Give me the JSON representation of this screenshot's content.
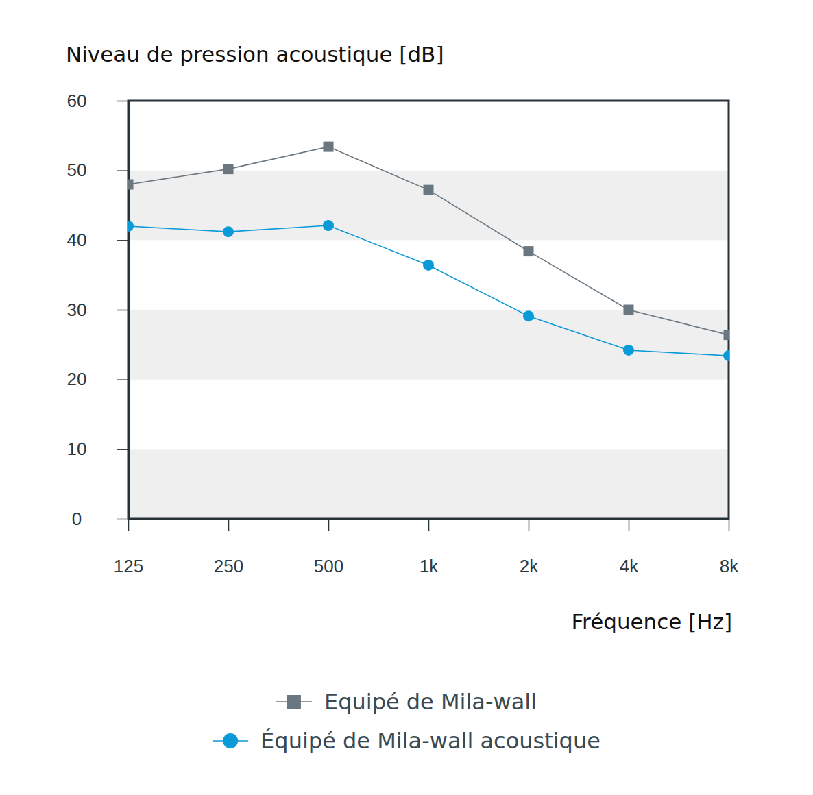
{
  "chart_data": {
    "type": "line",
    "y_label": "Niveau de pression acoustique [dB]",
    "x_label": "Fréquence [Hz]",
    "categories": [
      "125",
      "250",
      "500",
      "1k",
      "2k",
      "4k",
      "8k"
    ],
    "series": [
      {
        "name": "Equipé de Mila-wall",
        "color": "#6b7780",
        "marker": "square",
        "line_style": "solid",
        "values": [
          48.0,
          50.2,
          53.4,
          47.2,
          38.4,
          30.0,
          26.4
        ]
      },
      {
        "name": "Équipé de Mila-wall acoustique",
        "color": "#0a9ad8",
        "marker": "circle",
        "line_style": "solid",
        "values": [
          42.0,
          41.2,
          42.1,
          36.4,
          29.1,
          24.2,
          23.4
        ]
      }
    ],
    "ylim": [
      0,
      60
    ],
    "yticks": [
      0,
      10,
      20,
      30,
      40,
      50,
      60
    ],
    "grid": true,
    "legend": "bottom"
  }
}
